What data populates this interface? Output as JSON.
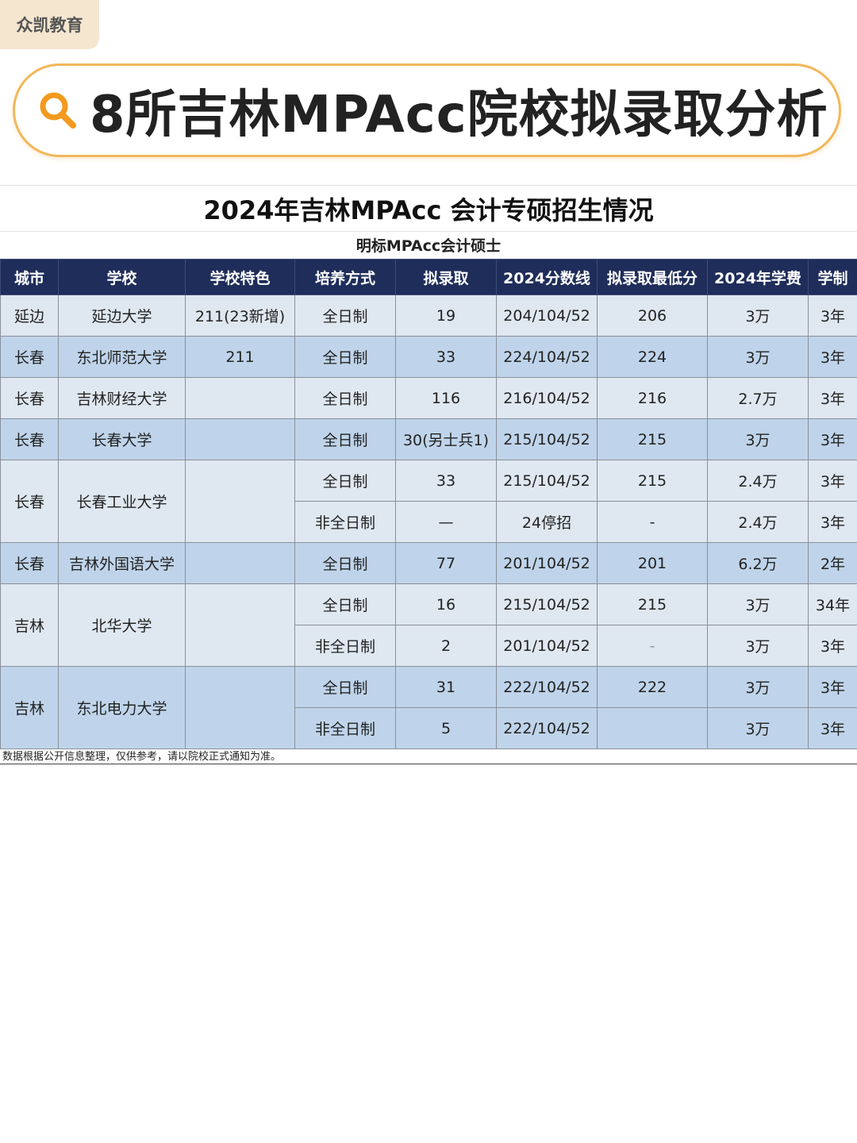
{
  "brand": "众凯教育",
  "banner": {
    "title": "8所吉林MPAcc院校拟录取分析",
    "icon": "search-icon"
  },
  "sheet": {
    "title": "2024年吉林MPAcc 会计专硕招生情况",
    "subtitle": "明标MPAcc会计硕士",
    "headers": [
      "城市",
      "学校",
      "学校特色",
      "培养方式",
      "拟录取",
      "2024分数线",
      "拟录取最低分",
      "2024年学费",
      "学制"
    ],
    "rows": {
      "r0": {
        "city": "延边",
        "school": "延边大学",
        "feature": "211(23新增)",
        "mode": "全日制",
        "admit": "19",
        "line": "204/104/52",
        "min": "206",
        "fee": "3万",
        "years": "3年"
      },
      "r1": {
        "city": "长春",
        "school": "东北师范大学",
        "feature": "211",
        "mode": "全日制",
        "admit": "33",
        "line": "224/104/52",
        "min": "224",
        "fee": "3万",
        "years": "3年"
      },
      "r2": {
        "city": "长春",
        "school": "吉林财经大学",
        "feature": "",
        "mode": "全日制",
        "admit": "116",
        "line": "216/104/52",
        "min": "216",
        "fee": "2.7万",
        "years": "3年"
      },
      "r3": {
        "city": "长春",
        "school": "长春大学",
        "feature": "",
        "mode": "全日制",
        "admit": "30(另士兵1)",
        "line": "215/104/52",
        "min": "215",
        "fee": "3万",
        "years": "3年"
      },
      "r4": {
        "city": "长春",
        "school": "长春工业大学",
        "feature": "",
        "mode": "全日制",
        "admit": "33",
        "line": "215/104/52",
        "min": "215",
        "fee": "2.4万",
        "years": "3年"
      },
      "r5": {
        "mode": "非全日制",
        "admit": "—",
        "line": "24停招",
        "min": "-",
        "fee": "2.4万",
        "years": "3年"
      },
      "r6": {
        "city": "长春",
        "school": "吉林外国语大学",
        "feature": "",
        "mode": "全日制",
        "admit": "77",
        "line": "201/104/52",
        "min": "201",
        "fee": "6.2万",
        "years": "2年"
      },
      "r7": {
        "city": "吉林",
        "school": "北华大学",
        "feature": "",
        "mode": "全日制",
        "admit": "16",
        "line": "215/104/52",
        "min": "215",
        "fee": "3万",
        "years": "34年"
      },
      "r8": {
        "mode": "非全日制",
        "admit": "2",
        "line": "201/104/52",
        "min": "-",
        "fee": "3万",
        "years": "3年"
      },
      "r9": {
        "city": "吉林",
        "school": "东北电力大学",
        "feature": "",
        "mode": "全日制",
        "admit": "31",
        "line": "222/104/52",
        "min": "222",
        "fee": "3万",
        "years": "3年"
      },
      "r10": {
        "mode": "非全日制",
        "admit": "5",
        "line": "222/104/52",
        "min": "",
        "fee": "3万",
        "years": "3年"
      }
    },
    "footnote": "数据根据公开信息整理，仅供参考，请以院校正式通知为准。"
  },
  "colors": {
    "header_bg": "#1f2d5a",
    "row_light": "#dfe8f1",
    "row_dark": "#bfd4ea",
    "banner_border": "#f2b75b",
    "icon_orange": "#f39a1e"
  }
}
